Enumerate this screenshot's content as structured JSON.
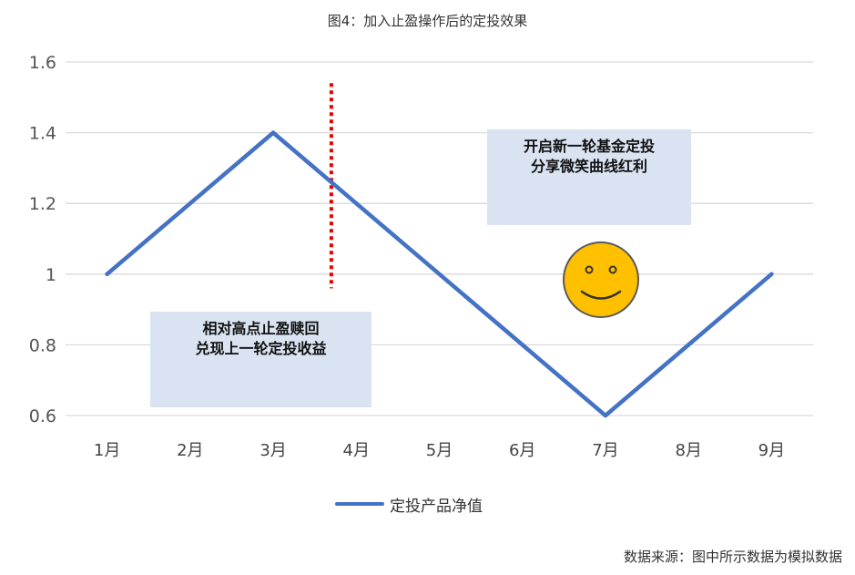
{
  "title": "图4：加入止盈操作后的定投效果",
  "source": "数据来源：图中所示数据为模拟数据",
  "annotations": {
    "left_box": [
      "相对高点止盈赎回",
      "兑现上一轮定投收益"
    ],
    "right_box": [
      "开启新一轮基金定投",
      "分享微笑曲线红利"
    ]
  },
  "colors": {
    "series": "#4472c4",
    "grid": "#d9d9d9",
    "marker_line": "#e30000",
    "callout_bg": "#dae3f2",
    "smiley_face": "#ffc000"
  },
  "chart_data": {
    "type": "line",
    "categories": [
      "1月",
      "2月",
      "3月",
      "4月",
      "5月",
      "6月",
      "7月",
      "8月",
      "9月"
    ],
    "series": [
      {
        "name": "定投产品净值",
        "values": [
          1.0,
          1.2,
          1.4,
          1.2,
          1.0,
          0.8,
          0.6,
          0.8,
          1.0
        ]
      }
    ],
    "y_ticks": [
      "0.6",
      "0.8",
      "1",
      "1.2",
      "1.4",
      "1.6"
    ],
    "ylim": [
      0.6,
      1.6
    ],
    "grid": true,
    "legend_position": "bottom",
    "take_profit_marker_x": 2.7,
    "take_profit_marker_range": [
      0.96,
      1.54
    ]
  }
}
